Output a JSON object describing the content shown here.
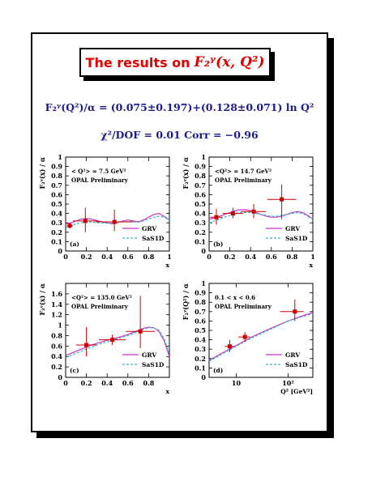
{
  "title": {
    "text": "The results on",
    "math": "F₂ᵞ(x, Q²)"
  },
  "formula1": "F₂ᵞ(Q²)/α = (0.075±0.197)+(0.128±0.071) ln Q²",
  "formula2": "χ²/DOF = 0.01   Corr = −0.96",
  "colors": {
    "grv": "#cc33cc",
    "sas": "#33bbbb",
    "points": "#cc0000",
    "formula": "#1a1a8c",
    "title": "#e00000"
  },
  "chart_data": [
    {
      "type": "scatter",
      "panel_label": "(a)",
      "annotation": [
        "< Q²> = 7.5 GeV²",
        "OPAL Preliminary"
      ],
      "ylabel": "F₂ᵞ(x) / α",
      "xlabel": "x",
      "xlim": [
        0,
        1
      ],
      "ylim": [
        0,
        1
      ],
      "xticks": [
        0,
        0.2,
        0.4,
        0.6,
        0.8,
        1
      ],
      "yticks": [
        0,
        0.1,
        0.2,
        0.3,
        0.4,
        0.5,
        0.6,
        0.7,
        0.8,
        0.9,
        1
      ],
      "xticklabels": [
        "0",
        "0.2",
        "0.4",
        "0.6",
        "0.8",
        "1"
      ],
      "yticklabels": [
        "0",
        "0.1",
        "0.2",
        "0.3",
        "0.4",
        "0.5",
        "0.6",
        "0.7",
        "0.8",
        "0.9",
        "1"
      ],
      "legend": [
        "GRV",
        "SaS1D"
      ],
      "points": [
        {
          "x": 0.04,
          "y": 0.27,
          "xerr": [
            0.03,
            0.03
          ],
          "yerr": [
            0.03,
            0.03
          ]
        },
        {
          "x": 0.19,
          "y": 0.32,
          "xerr": [
            0.12,
            0.12
          ],
          "yerr": [
            0.12,
            0.14
          ]
        },
        {
          "x": 0.47,
          "y": 0.31,
          "xerr": [
            0.18,
            0.18
          ],
          "yerr": [
            0.1,
            0.13
          ]
        }
      ],
      "series": [
        {
          "name": "GRV",
          "x": [
            0,
            0.05,
            0.1,
            0.15,
            0.2,
            0.25,
            0.3,
            0.35,
            0.4,
            0.45,
            0.5,
            0.55,
            0.6,
            0.65,
            0.7,
            0.75,
            0.8,
            0.85,
            0.9,
            0.95,
            1.0
          ],
          "y": [
            0.29,
            0.3,
            0.32,
            0.34,
            0.345,
            0.34,
            0.325,
            0.31,
            0.3,
            0.29,
            0.3,
            0.32,
            0.33,
            0.32,
            0.31,
            0.33,
            0.36,
            0.39,
            0.4,
            0.37,
            0.33
          ]
        },
        {
          "name": "SaS1D",
          "x": [
            0,
            0.05,
            0.1,
            0.15,
            0.2,
            0.25,
            0.3,
            0.35,
            0.4,
            0.45,
            0.5,
            0.55,
            0.6,
            0.65,
            0.7,
            0.75,
            0.8,
            0.85,
            0.9,
            0.95,
            1.0
          ],
          "y": [
            0.25,
            0.27,
            0.29,
            0.3,
            0.31,
            0.31,
            0.3,
            0.3,
            0.295,
            0.3,
            0.305,
            0.31,
            0.315,
            0.31,
            0.305,
            0.32,
            0.34,
            0.36,
            0.37,
            0.36,
            0.33
          ]
        }
      ]
    },
    {
      "type": "scatter",
      "panel_label": "(b)",
      "annotation": [
        "<Q²> = 14.7 GeV²",
        "OPAL Preliminary"
      ],
      "ylabel": "F₂ᵞ(x) / α",
      "xlabel": "x",
      "xlim": [
        0,
        1
      ],
      "ylim": [
        0,
        1
      ],
      "xticks": [
        0,
        0.2,
        0.4,
        0.6,
        0.8,
        1
      ],
      "yticks": [
        0,
        0.1,
        0.2,
        0.3,
        0.4,
        0.5,
        0.6,
        0.7,
        0.8,
        0.9,
        1
      ],
      "xticklabels": [
        "0",
        "0.2",
        "0.4",
        "0.6",
        "0.8",
        "1"
      ],
      "yticklabels": [
        "0",
        "0.1",
        "0.2",
        "0.3",
        "0.4",
        "0.5",
        "0.6",
        "0.7",
        "0.8",
        "0.9",
        "1"
      ],
      "legend": [
        "GRV",
        "SaS1D"
      ],
      "points": [
        {
          "x": 0.07,
          "y": 0.36,
          "xerr": [
            0.06,
            0.06
          ],
          "yerr": [
            0.08,
            0.09
          ]
        },
        {
          "x": 0.23,
          "y": 0.4,
          "xerr": [
            0.1,
            0.1
          ],
          "yerr": [
            0.05,
            0.06
          ]
        },
        {
          "x": 0.43,
          "y": 0.42,
          "xerr": [
            0.12,
            0.12
          ],
          "yerr": [
            0.07,
            0.08
          ]
        },
        {
          "x": 0.7,
          "y": 0.55,
          "xerr": [
            0.14,
            0.14
          ],
          "yerr": [
            0.21,
            0.16
          ]
        }
      ],
      "series": [
        {
          "name": "GRV",
          "x": [
            0,
            0.05,
            0.1,
            0.15,
            0.2,
            0.25,
            0.3,
            0.35,
            0.4,
            0.45,
            0.5,
            0.55,
            0.6,
            0.65,
            0.7,
            0.75,
            0.8,
            0.85,
            0.9,
            0.95,
            1.0
          ],
          "y": [
            0.34,
            0.35,
            0.37,
            0.39,
            0.41,
            0.43,
            0.44,
            0.44,
            0.43,
            0.41,
            0.39,
            0.37,
            0.36,
            0.36,
            0.37,
            0.39,
            0.41,
            0.42,
            0.41,
            0.38,
            0.34
          ]
        },
        {
          "name": "SaS1D",
          "x": [
            0,
            0.05,
            0.1,
            0.15,
            0.2,
            0.25,
            0.3,
            0.35,
            0.4,
            0.45,
            0.5,
            0.55,
            0.6,
            0.65,
            0.7,
            0.75,
            0.8,
            0.85,
            0.9,
            0.95,
            1.0
          ],
          "y": [
            0.3,
            0.32,
            0.34,
            0.36,
            0.38,
            0.4,
            0.41,
            0.41,
            0.41,
            0.4,
            0.39,
            0.38,
            0.37,
            0.37,
            0.38,
            0.39,
            0.4,
            0.41,
            0.4,
            0.37,
            0.34
          ]
        }
      ]
    },
    {
      "type": "scatter",
      "panel_label": "(c)",
      "annotation": [
        "<Q²> = 135.0 GeV²",
        "OPAL Preliminary"
      ],
      "ylabel": "F₂ᵞ(x) / α",
      "xlabel": "x",
      "xlim": [
        0,
        1
      ],
      "ylim": [
        0,
        1.8
      ],
      "xticks": [
        0,
        0.2,
        0.4,
        0.6,
        0.8
      ],
      "yticks": [
        0,
        0.2,
        0.4,
        0.6,
        0.8,
        1,
        1.2,
        1.4,
        1.6
      ],
      "xticklabels": [
        "0",
        "0.2",
        "0.4",
        "0.6",
        "0.8"
      ],
      "yticklabels": [
        "0",
        "0.2",
        "0.4",
        "0.6",
        "0.8",
        "1",
        "1.2",
        "1.4",
        "1.6"
      ],
      "legend": [
        "GRV",
        "SaS1D"
      ],
      "points": [
        {
          "x": 0.2,
          "y": 0.62,
          "xerr": [
            0.1,
            0.1
          ],
          "yerr": [
            0.22,
            0.34
          ]
        },
        {
          "x": 0.45,
          "y": 0.72,
          "xerr": [
            0.13,
            0.13
          ],
          "yerr": [
            0.1,
            0.1
          ]
        },
        {
          "x": 0.72,
          "y": 0.88,
          "xerr": [
            0.14,
            0.14
          ],
          "yerr": [
            0.32,
            0.68
          ]
        }
      ],
      "series": [
        {
          "name": "GRV",
          "x": [
            0,
            0.05,
            0.1,
            0.15,
            0.2,
            0.25,
            0.3,
            0.35,
            0.4,
            0.45,
            0.5,
            0.55,
            0.6,
            0.65,
            0.7,
            0.75,
            0.8,
            0.85,
            0.9,
            0.95,
            1.0
          ],
          "y": [
            0.42,
            0.46,
            0.5,
            0.54,
            0.58,
            0.62,
            0.65,
            0.68,
            0.71,
            0.73,
            0.76,
            0.79,
            0.82,
            0.86,
            0.9,
            0.94,
            0.96,
            0.95,
            0.88,
            0.7,
            0.4
          ]
        },
        {
          "name": "SaS1D",
          "x": [
            0,
            0.05,
            0.1,
            0.15,
            0.2,
            0.25,
            0.3,
            0.35,
            0.4,
            0.45,
            0.5,
            0.55,
            0.6,
            0.65,
            0.7,
            0.75,
            0.8,
            0.85,
            0.9,
            0.95,
            1.0
          ],
          "y": [
            0.38,
            0.42,
            0.46,
            0.5,
            0.54,
            0.58,
            0.62,
            0.65,
            0.68,
            0.71,
            0.74,
            0.77,
            0.8,
            0.84,
            0.88,
            0.92,
            0.95,
            0.95,
            0.9,
            0.74,
            0.45
          ]
        }
      ]
    },
    {
      "type": "scatter",
      "panel_label": "(d)",
      "annotation": [
        "0.1 < x < 0.6",
        "OPAL Preliminary"
      ],
      "ylabel": "F₂ᵞ(Q²) / α",
      "xlabel": "Q² [GeV²]",
      "xscale": "log",
      "xlim": [
        3,
        300
      ],
      "ylim": [
        0,
        1
      ],
      "xticks": [
        10,
        100
      ],
      "yticks": [
        0,
        0.1,
        0.2,
        0.3,
        0.4,
        0.5,
        0.6,
        0.7,
        0.8,
        0.9,
        1
      ],
      "xticklabels": [
        "10",
        "10²"
      ],
      "yticklabels": [
        "0",
        "0.1",
        "0.2",
        "0.3",
        "0.4",
        "0.5",
        "0.6",
        "0.7",
        "0.8",
        "0.9",
        "1"
      ],
      "legend": [
        "GRV",
        "SaS1D"
      ],
      "points": [
        {
          "x": 7.5,
          "y": 0.33,
          "xerr": [
            1.5,
            1.5
          ],
          "yerr": [
            0.06,
            0.07
          ]
        },
        {
          "x": 14.7,
          "y": 0.43,
          "xerr": [
            3.7,
            3.7
          ],
          "yerr": [
            0.05,
            0.05
          ]
        },
        {
          "x": 135,
          "y": 0.7,
          "xerr": [
            65,
            65
          ],
          "yerr": [
            0.1,
            0.13
          ]
        }
      ],
      "series": [
        {
          "name": "GRV",
          "x": [
            3,
            5,
            10,
            20,
            50,
            100,
            200,
            300
          ],
          "y": [
            0.18,
            0.25,
            0.34,
            0.43,
            0.53,
            0.6,
            0.66,
            0.69
          ]
        },
        {
          "name": "SaS1D",
          "x": [
            3,
            5,
            10,
            20,
            50,
            100,
            200,
            300
          ],
          "y": [
            0.17,
            0.24,
            0.33,
            0.42,
            0.52,
            0.6,
            0.65,
            0.68
          ]
        }
      ]
    }
  ]
}
